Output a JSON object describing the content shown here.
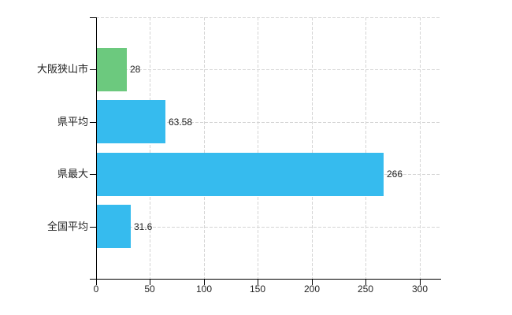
{
  "chart_data": {
    "type": "bar",
    "orientation": "horizontal",
    "title": "",
    "categories": [
      "大阪狭山市",
      "県平均",
      "県最大",
      "全国平均"
    ],
    "values": [
      28,
      63.58,
      266,
      31.6
    ],
    "value_labels": [
      "28",
      "63.58",
      "266",
      "31.6"
    ],
    "bar_colors": [
      "#6cc97e",
      "#36bbee",
      "#36bbee",
      "#36bbee"
    ],
    "x_ticks": [
      "0",
      "50",
      "100",
      "150",
      "200",
      "250",
      "300"
    ],
    "x_tick_values": [
      0,
      50,
      100,
      150,
      200,
      250,
      300
    ],
    "xlim": [
      0,
      320
    ],
    "grid": true,
    "legend": false,
    "colors": {
      "background": "#ffffff",
      "gridline": "#d4d4d4",
      "axis": "#000000",
      "text": "#222222"
    }
  }
}
